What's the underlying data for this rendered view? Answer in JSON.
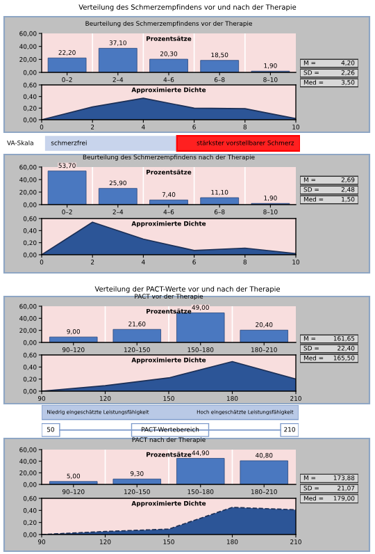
{
  "chart_data": [
    {
      "type": "other",
      "title": "Verteilung des Schmerzempfindens vor und nach der Therapie"
    },
    {
      "type": "bar",
      "title": "Beurteilung des Schmerzempfindens vor der Therapie",
      "annotations": [
        "Prozentsätze"
      ],
      "categories": [
        "0–2",
        "2–4",
        "4–6",
        "6–8",
        "8–10"
      ],
      "values": [
        22.2,
        37.1,
        20.3,
        18.5,
        1.9
      ],
      "value_labels": [
        "22,20",
        "37,10",
        "20,30",
        "18,50",
        "1,90"
      ],
      "color": "#4a78c0",
      "ylim": [
        0,
        60
      ],
      "yticks": [
        {
          "value": 0,
          "label": "0,00"
        },
        {
          "value": 20,
          "label": "20,00"
        },
        {
          "value": 40,
          "label": "40,00"
        },
        {
          "value": 60,
          "label": "60,00"
        }
      ]
    },
    {
      "type": "other",
      "annotations": [
        "M =",
        "4,20",
        "SD =",
        "2,26",
        "Med =",
        "3,50"
      ]
    },
    {
      "type": "area",
      "title": "Approximierte Dichte",
      "x": [
        0,
        2,
        4,
        6,
        8,
        10
      ],
      "values": [
        0,
        0.22,
        0.37,
        0.2,
        0.19,
        0.02
      ],
      "color": "#2c5597",
      "xlim": [
        0,
        10
      ],
      "xticks": [
        0,
        2,
        4,
        6,
        8,
        10
      ],
      "ylim": [
        0,
        0.6
      ],
      "yticks": [
        {
          "value": 0,
          "label": "0,00"
        },
        {
          "value": 0.2,
          "label": "0,20"
        },
        {
          "value": 0.4,
          "label": "0,40"
        },
        {
          "value": 0.6,
          "label": "0,60"
        }
      ]
    },
    {
      "type": "other",
      "annotations": [
        "VA-Skala",
        "schmerzfrei",
        "stärkster vorstellbarer Schmerz"
      ]
    },
    {
      "type": "bar",
      "title": "Beurteilung des Schmerzempfindens nach der Therapie",
      "annotations": [
        "Prozentsätze"
      ],
      "categories": [
        "0–2",
        "2–4",
        "4–6",
        "6–8",
        "8–10"
      ],
      "values": [
        53.7,
        25.9,
        7.4,
        11.1,
        1.9
      ],
      "value_labels": [
        "53,70",
        "25,90",
        "7,40",
        "11,10",
        "1,90"
      ],
      "color": "#4a78c0",
      "ylim": [
        0,
        60
      ],
      "yticks": [
        {
          "value": 0,
          "label": "0,00"
        },
        {
          "value": 20,
          "label": "20,00"
        },
        {
          "value": 40,
          "label": "40,00"
        },
        {
          "value": 60,
          "label": "60,00"
        }
      ]
    },
    {
      "type": "other",
      "annotations": [
        "M =",
        "2,69",
        "SD =",
        "2,48",
        "Med =",
        "1,50"
      ]
    },
    {
      "type": "area",
      "title": "Approximierte Dichte",
      "x": [
        0,
        2,
        4,
        6,
        8,
        10
      ],
      "values": [
        0,
        0.54,
        0.26,
        0.07,
        0.11,
        0.02
      ],
      "color": "#2c5597",
      "xlim": [
        0,
        10
      ],
      "xticks": [
        0,
        2,
        4,
        6,
        8,
        10
      ],
      "ylim": [
        0,
        0.6
      ],
      "yticks": [
        {
          "value": 0,
          "label": "0,00"
        },
        {
          "value": 0.2,
          "label": "0,20"
        },
        {
          "value": 0.4,
          "label": "0,40"
        },
        {
          "value": 0.6,
          "label": "0,60"
        }
      ]
    },
    {
      "type": "other",
      "title": "Verteilung der PACT-Werte vor und nach der Therapie"
    },
    {
      "type": "bar",
      "title": "PACT vor der Therapie",
      "annotations": [
        "Prozentsätze"
      ],
      "categories": [
        "90–120",
        "120–150",
        "150–180",
        "180–210"
      ],
      "values": [
        9.0,
        21.6,
        49.0,
        20.4
      ],
      "value_labels": [
        "9,00",
        "21,60",
        "49,00",
        "20,40"
      ],
      "color": "#4a78c0",
      "ylim": [
        0,
        60
      ],
      "yticks": [
        {
          "value": 0,
          "label": "0,00"
        },
        {
          "value": 20,
          "label": "20,00"
        },
        {
          "value": 40,
          "label": "40,00"
        },
        {
          "value": 60,
          "label": "60,00"
        }
      ]
    },
    {
      "type": "other",
      "annotations": [
        "M =",
        "161,65",
        "SD =",
        "22,40",
        "Med =",
        "165,50"
      ]
    },
    {
      "type": "area",
      "title": "Approximierte Dichte",
      "x": [
        90,
        120,
        150,
        180,
        210
      ],
      "values": [
        0,
        0.09,
        0.22,
        0.49,
        0.2
      ],
      "color": "#2c5597",
      "xlim": [
        90,
        210
      ],
      "xticks": [
        90,
        120,
        150,
        180,
        210
      ],
      "ylim": [
        0,
        0.6
      ],
      "yticks": [
        {
          "value": 0,
          "label": "0,00"
        },
        {
          "value": 0.2,
          "label": "0,20"
        },
        {
          "value": 0.4,
          "label": "0,40"
        },
        {
          "value": 0.6,
          "label": "0,60"
        }
      ]
    },
    {
      "type": "other",
      "annotations": [
        "Niedrig eingeschätzte Leistungsfähigkeit",
        "Hoch eingeschätzte Leistungsfähigkeit",
        "50",
        "PACT-Wertebereich",
        "210"
      ]
    },
    {
      "type": "bar",
      "title": "PACT nach der Therapie",
      "annotations": [
        "Prozentsätze"
      ],
      "categories": [
        "90–120",
        "120–150",
        "150–180",
        "180–210"
      ],
      "values": [
        5.0,
        9.3,
        44.9,
        40.8
      ],
      "value_labels": [
        "5,00",
        "9,30",
        "44,90",
        "40,80"
      ],
      "color": "#4a78c0",
      "ylim": [
        0,
        60
      ],
      "yticks": [
        {
          "value": 0,
          "label": "0,00"
        },
        {
          "value": 20,
          "label": "20,00"
        },
        {
          "value": 40,
          "label": "40,00"
        },
        {
          "value": 60,
          "label": "60,00"
        }
      ]
    },
    {
      "type": "other",
      "annotations": [
        "M =",
        "173,88",
        "SD =",
        "21,07",
        "Med =",
        "179,00"
      ]
    },
    {
      "type": "area",
      "title": "Approximierte Dichte",
      "line_style": "dashed",
      "x": [
        90,
        120,
        150,
        180,
        210
      ],
      "values": [
        0,
        0.05,
        0.09,
        0.45,
        0.41
      ],
      "color": "#2c5597",
      "xlim": [
        90,
        210
      ],
      "xticks": [
        90,
        120,
        150,
        180,
        210
      ],
      "ylim": [
        0,
        0.6
      ],
      "yticks": [
        {
          "value": 0,
          "label": "0,00"
        },
        {
          "value": 0.2,
          "label": "0,20"
        },
        {
          "value": 0.4,
          "label": "0,40"
        },
        {
          "value": 0.6,
          "label": "0,60"
        }
      ]
    }
  ]
}
